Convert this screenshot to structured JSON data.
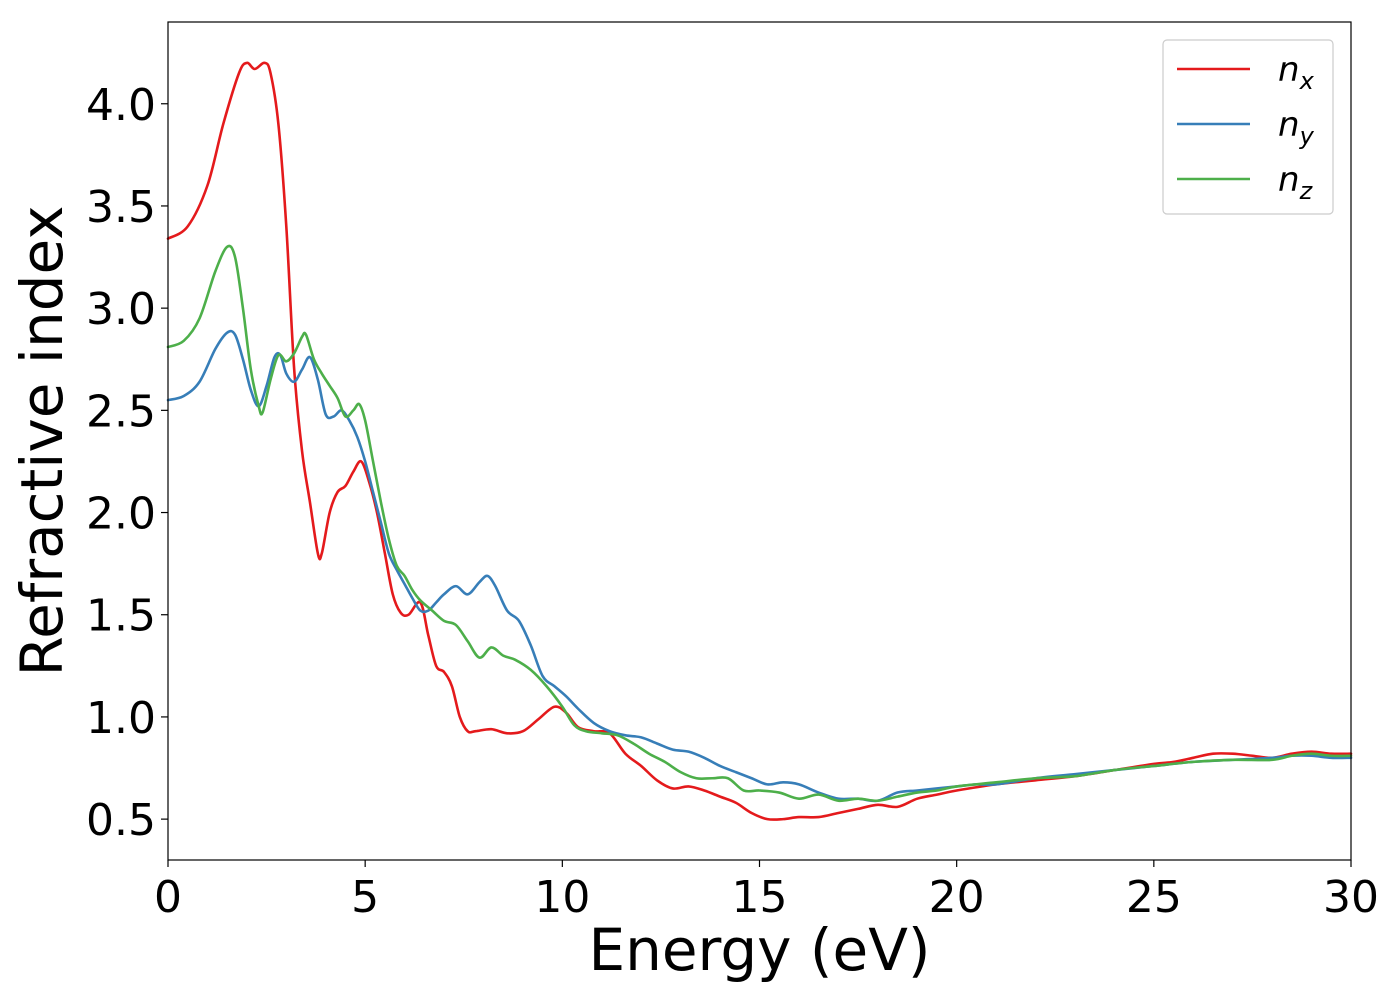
{
  "chart_data": {
    "type": "line",
    "title": "",
    "xlabel": "Energy (eV)",
    "ylabel": "Refractive index",
    "xlim": [
      0,
      30
    ],
    "ylim": [
      0.3,
      4.4
    ],
    "xticks": [
      0,
      5,
      10,
      15,
      20,
      25,
      30
    ],
    "yticks": [
      0.5,
      1.0,
      1.5,
      2.0,
      2.5,
      3.0,
      3.5,
      4.0
    ],
    "xtick_labels": [
      "0",
      "5",
      "10",
      "15",
      "20",
      "25",
      "30"
    ],
    "ytick_labels": [
      "0.5",
      "1.0",
      "1.5",
      "2.0",
      "2.5",
      "3.0",
      "3.5",
      "4.0"
    ],
    "grid": false,
    "legend_position": "top-right",
    "series": [
      {
        "name": "n_x",
        "legend_base": "n",
        "legend_sub": "x",
        "color": "#e41a1c",
        "points": [
          [
            0,
            3.34
          ],
          [
            0.5,
            3.4
          ],
          [
            1.0,
            3.6
          ],
          [
            1.4,
            3.9
          ],
          [
            1.8,
            4.15
          ],
          [
            2.0,
            4.2
          ],
          [
            2.2,
            4.17
          ],
          [
            2.45,
            4.2
          ],
          [
            2.6,
            4.15
          ],
          [
            2.8,
            3.9
          ],
          [
            3.0,
            3.4
          ],
          [
            3.2,
            2.7
          ],
          [
            3.4,
            2.3
          ],
          [
            3.6,
            2.05
          ],
          [
            3.8,
            1.8
          ],
          [
            3.9,
            1.8
          ],
          [
            4.1,
            2.0
          ],
          [
            4.3,
            2.1
          ],
          [
            4.5,
            2.13
          ],
          [
            4.7,
            2.2
          ],
          [
            4.9,
            2.25
          ],
          [
            5.1,
            2.15
          ],
          [
            5.3,
            2.0
          ],
          [
            5.5,
            1.8
          ],
          [
            5.7,
            1.6
          ],
          [
            5.9,
            1.51
          ],
          [
            6.1,
            1.5
          ],
          [
            6.4,
            1.56
          ],
          [
            6.6,
            1.4
          ],
          [
            6.8,
            1.25
          ],
          [
            7.0,
            1.22
          ],
          [
            7.2,
            1.15
          ],
          [
            7.4,
            1.0
          ],
          [
            7.6,
            0.93
          ],
          [
            7.8,
            0.93
          ],
          [
            8.2,
            0.94
          ],
          [
            8.6,
            0.92
          ],
          [
            9.0,
            0.93
          ],
          [
            9.4,
            0.99
          ],
          [
            9.8,
            1.05
          ],
          [
            10.1,
            1.02
          ],
          [
            10.4,
            0.95
          ],
          [
            10.8,
            0.93
          ],
          [
            11.2,
            0.92
          ],
          [
            11.6,
            0.82
          ],
          [
            12.0,
            0.76
          ],
          [
            12.4,
            0.69
          ],
          [
            12.8,
            0.65
          ],
          [
            13.2,
            0.66
          ],
          [
            13.6,
            0.64
          ],
          [
            14.0,
            0.61
          ],
          [
            14.4,
            0.58
          ],
          [
            14.8,
            0.53
          ],
          [
            15.2,
            0.5
          ],
          [
            15.6,
            0.5
          ],
          [
            16.0,
            0.51
          ],
          [
            16.5,
            0.51
          ],
          [
            17.0,
            0.53
          ],
          [
            17.5,
            0.55
          ],
          [
            18.0,
            0.57
          ],
          [
            18.5,
            0.56
          ],
          [
            19.0,
            0.6
          ],
          [
            19.5,
            0.62
          ],
          [
            20.0,
            0.64
          ],
          [
            21.0,
            0.67
          ],
          [
            22.0,
            0.69
          ],
          [
            23.0,
            0.71
          ],
          [
            24.0,
            0.74
          ],
          [
            25.0,
            0.77
          ],
          [
            25.5,
            0.78
          ],
          [
            26.0,
            0.8
          ],
          [
            26.5,
            0.82
          ],
          [
            27.0,
            0.82
          ],
          [
            27.5,
            0.81
          ],
          [
            28.0,
            0.8
          ],
          [
            28.5,
            0.82
          ],
          [
            29.0,
            0.83
          ],
          [
            29.5,
            0.82
          ],
          [
            30.0,
            0.82
          ]
        ]
      },
      {
        "name": "n_y",
        "legend_base": "n",
        "legend_sub": "y",
        "color": "#377eb8",
        "points": [
          [
            0,
            2.55
          ],
          [
            0.4,
            2.57
          ],
          [
            0.8,
            2.64
          ],
          [
            1.2,
            2.8
          ],
          [
            1.5,
            2.88
          ],
          [
            1.7,
            2.87
          ],
          [
            1.9,
            2.75
          ],
          [
            2.1,
            2.6
          ],
          [
            2.3,
            2.52
          ],
          [
            2.5,
            2.62
          ],
          [
            2.7,
            2.76
          ],
          [
            2.85,
            2.77
          ],
          [
            3.0,
            2.68
          ],
          [
            3.2,
            2.64
          ],
          [
            3.4,
            2.7
          ],
          [
            3.6,
            2.76
          ],
          [
            3.8,
            2.65
          ],
          [
            4.0,
            2.48
          ],
          [
            4.2,
            2.47
          ],
          [
            4.4,
            2.5
          ],
          [
            4.6,
            2.45
          ],
          [
            4.8,
            2.37
          ],
          [
            5.0,
            2.25
          ],
          [
            5.2,
            2.1
          ],
          [
            5.4,
            1.95
          ],
          [
            5.6,
            1.8
          ],
          [
            5.8,
            1.72
          ],
          [
            6.0,
            1.65
          ],
          [
            6.2,
            1.58
          ],
          [
            6.4,
            1.52
          ],
          [
            6.6,
            1.52
          ],
          [
            6.8,
            1.56
          ],
          [
            7.0,
            1.6
          ],
          [
            7.3,
            1.64
          ],
          [
            7.6,
            1.6
          ],
          [
            7.9,
            1.66
          ],
          [
            8.1,
            1.69
          ],
          [
            8.3,
            1.64
          ],
          [
            8.6,
            1.52
          ],
          [
            8.9,
            1.47
          ],
          [
            9.2,
            1.35
          ],
          [
            9.5,
            1.2
          ],
          [
            9.8,
            1.15
          ],
          [
            10.1,
            1.1
          ],
          [
            10.4,
            1.04
          ],
          [
            10.8,
            0.97
          ],
          [
            11.2,
            0.93
          ],
          [
            11.6,
            0.91
          ],
          [
            12.0,
            0.9
          ],
          [
            12.4,
            0.87
          ],
          [
            12.8,
            0.84
          ],
          [
            13.2,
            0.83
          ],
          [
            13.6,
            0.8
          ],
          [
            14.0,
            0.76
          ],
          [
            14.4,
            0.73
          ],
          [
            14.8,
            0.7
          ],
          [
            15.2,
            0.67
          ],
          [
            15.6,
            0.68
          ],
          [
            16.0,
            0.67
          ],
          [
            16.5,
            0.63
          ],
          [
            17.0,
            0.6
          ],
          [
            17.5,
            0.6
          ],
          [
            18.0,
            0.59
          ],
          [
            18.5,
            0.63
          ],
          [
            19.0,
            0.64
          ],
          [
            19.5,
            0.65
          ],
          [
            20.0,
            0.66
          ],
          [
            20.5,
            0.67
          ],
          [
            21.0,
            0.67
          ],
          [
            22.0,
            0.7
          ],
          [
            23.0,
            0.72
          ],
          [
            24.0,
            0.74
          ],
          [
            25.0,
            0.76
          ],
          [
            26.0,
            0.78
          ],
          [
            27.0,
            0.79
          ],
          [
            28.0,
            0.8
          ],
          [
            28.5,
            0.81
          ],
          [
            29.0,
            0.81
          ],
          [
            29.5,
            0.8
          ],
          [
            30.0,
            0.8
          ]
        ]
      },
      {
        "name": "n_z",
        "legend_base": "n",
        "legend_sub": "z",
        "color": "#4daf4a",
        "points": [
          [
            0,
            2.81
          ],
          [
            0.4,
            2.84
          ],
          [
            0.8,
            2.95
          ],
          [
            1.2,
            3.18
          ],
          [
            1.5,
            3.3
          ],
          [
            1.7,
            3.25
          ],
          [
            1.9,
            3.0
          ],
          [
            2.1,
            2.7
          ],
          [
            2.3,
            2.52
          ],
          [
            2.4,
            2.49
          ],
          [
            2.6,
            2.65
          ],
          [
            2.8,
            2.77
          ],
          [
            3.0,
            2.74
          ],
          [
            3.2,
            2.78
          ],
          [
            3.4,
            2.86
          ],
          [
            3.5,
            2.87
          ],
          [
            3.7,
            2.75
          ],
          [
            3.9,
            2.68
          ],
          [
            4.1,
            2.62
          ],
          [
            4.3,
            2.56
          ],
          [
            4.5,
            2.47
          ],
          [
            4.7,
            2.5
          ],
          [
            4.85,
            2.53
          ],
          [
            5.0,
            2.45
          ],
          [
            5.2,
            2.25
          ],
          [
            5.4,
            2.05
          ],
          [
            5.6,
            1.87
          ],
          [
            5.8,
            1.74
          ],
          [
            6.0,
            1.69
          ],
          [
            6.2,
            1.62
          ],
          [
            6.4,
            1.57
          ],
          [
            6.7,
            1.52
          ],
          [
            7.0,
            1.47
          ],
          [
            7.3,
            1.45
          ],
          [
            7.6,
            1.37
          ],
          [
            7.9,
            1.29
          ],
          [
            8.2,
            1.34
          ],
          [
            8.5,
            1.3
          ],
          [
            8.8,
            1.28
          ],
          [
            9.2,
            1.23
          ],
          [
            9.6,
            1.15
          ],
          [
            10.0,
            1.05
          ],
          [
            10.3,
            0.96
          ],
          [
            10.6,
            0.93
          ],
          [
            11.0,
            0.92
          ],
          [
            11.4,
            0.91
          ],
          [
            11.8,
            0.87
          ],
          [
            12.2,
            0.82
          ],
          [
            12.6,
            0.78
          ],
          [
            13.0,
            0.73
          ],
          [
            13.4,
            0.7
          ],
          [
            13.8,
            0.7
          ],
          [
            14.2,
            0.7
          ],
          [
            14.6,
            0.64
          ],
          [
            15.0,
            0.64
          ],
          [
            15.5,
            0.63
          ],
          [
            16.0,
            0.6
          ],
          [
            16.5,
            0.62
          ],
          [
            17.0,
            0.59
          ],
          [
            17.5,
            0.6
          ],
          [
            18.0,
            0.59
          ],
          [
            18.5,
            0.61
          ],
          [
            19.0,
            0.63
          ],
          [
            19.5,
            0.64
          ],
          [
            20.0,
            0.66
          ],
          [
            21.0,
            0.68
          ],
          [
            22.0,
            0.7
          ],
          [
            23.0,
            0.71
          ],
          [
            24.0,
            0.74
          ],
          [
            25.0,
            0.76
          ],
          [
            26.0,
            0.78
          ],
          [
            27.0,
            0.79
          ],
          [
            28.0,
            0.79
          ],
          [
            28.5,
            0.81
          ],
          [
            29.0,
            0.82
          ],
          [
            29.5,
            0.81
          ],
          [
            30.0,
            0.81
          ]
        ]
      }
    ]
  }
}
